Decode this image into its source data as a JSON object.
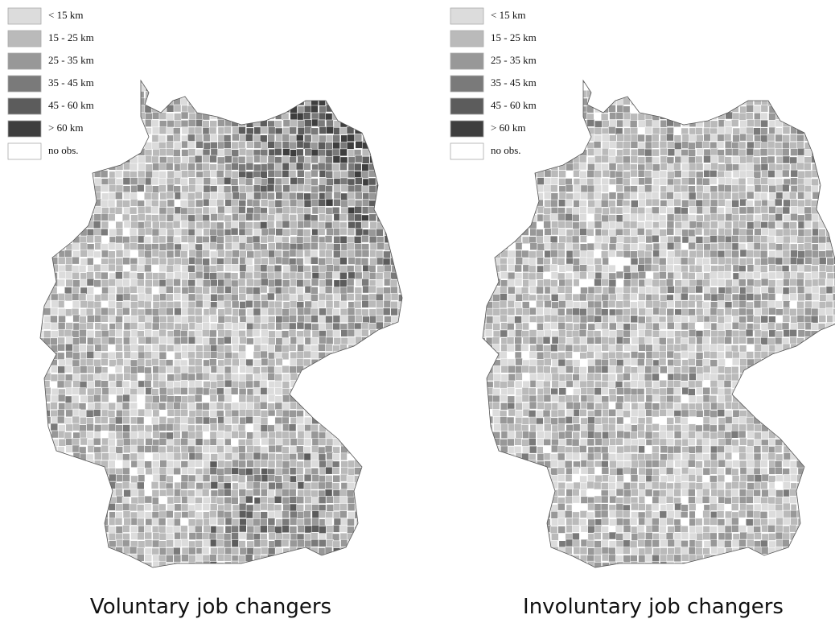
{
  "panels": [
    {
      "caption": "Voluntary job changers",
      "legend": [
        {
          "label": "< 15 km",
          "color": "#dcdcdc"
        },
        {
          "label": "15 - 25 km",
          "color": "#bababa"
        },
        {
          "label": "25 - 35 km",
          "color": "#989898"
        },
        {
          "label": "35 - 45 km",
          "color": "#7a7a7a"
        },
        {
          "label": "45 - 60 km",
          "color": "#5c5c5c"
        },
        {
          "label": "> 60 km",
          "color": "#3e3e3e"
        },
        {
          "label": "no obs.",
          "color": "#ffffff"
        }
      ]
    },
    {
      "caption": "Involuntary job changers",
      "legend": [
        {
          "label": "< 15 km",
          "color": "#dcdcdc"
        },
        {
          "label": "15 - 25 km",
          "color": "#bababa"
        },
        {
          "label": "25 - 35 km",
          "color": "#989898"
        },
        {
          "label": "35 - 45 km",
          "color": "#7a7a7a"
        },
        {
          "label": "45 - 60 km",
          "color": "#5c5c5c"
        },
        {
          "label": "> 60 km",
          "color": "#3e3e3e"
        },
        {
          "label": "no obs.",
          "color": "#ffffff"
        }
      ]
    }
  ]
}
